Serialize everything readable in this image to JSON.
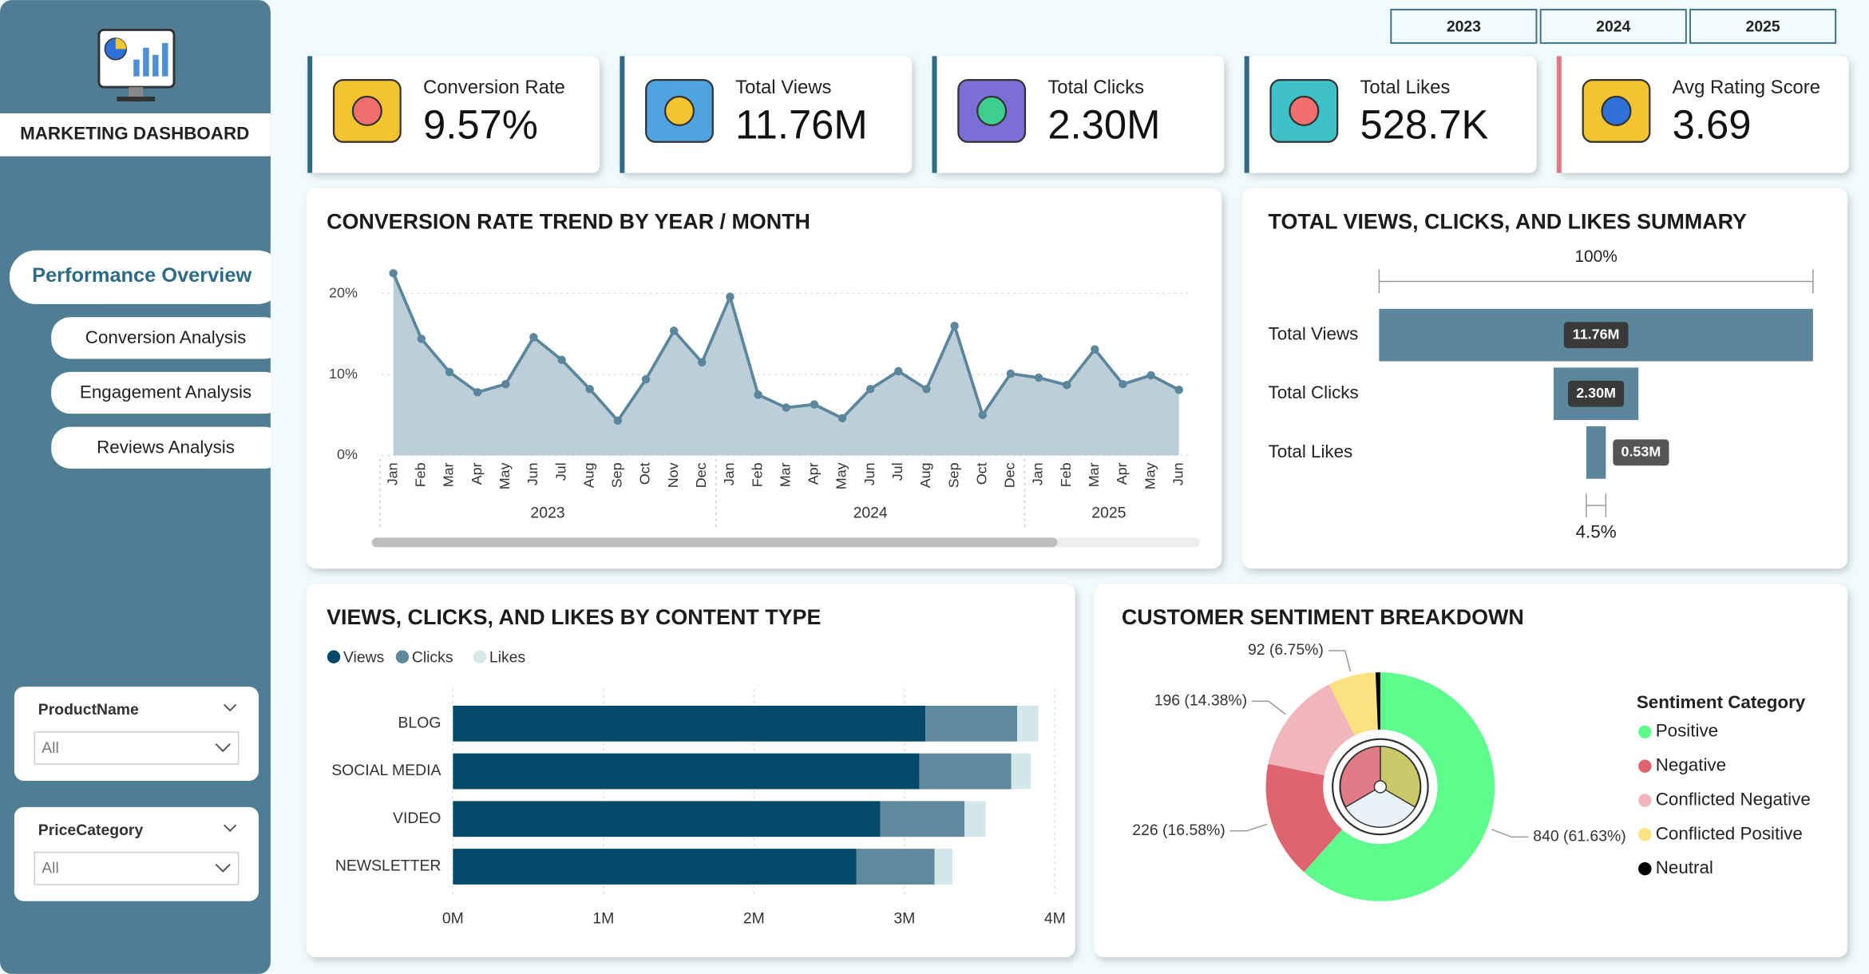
{
  "sidebar": {
    "title": "MARKETING DASHBOARD",
    "nav": [
      "Performance Overview",
      "Conversion Analysis",
      "Engagement Analysis",
      "Reviews Analysis"
    ],
    "filters": [
      {
        "label": "ProductName",
        "value": "All"
      },
      {
        "label": "PriceCategory",
        "value": "All"
      }
    ]
  },
  "years": [
    "2023",
    "2024",
    "2025"
  ],
  "kpis": [
    {
      "label": "Conversion Rate",
      "value": "9.57%"
    },
    {
      "label": "Total Views",
      "value": "11.76M"
    },
    {
      "label": "Total Clicks",
      "value": "2.30M"
    },
    {
      "label": "Total Likes",
      "value": "528.7K"
    },
    {
      "label": "Avg Rating Score",
      "value": "3.69"
    }
  ],
  "chart_data": [
    {
      "type": "area",
      "title": "CONVERSION RATE TREND BY YEAR / MONTH",
      "categories": [
        {
          "month": "Jan",
          "year": "2023"
        },
        {
          "month": "Feb",
          "year": "2023"
        },
        {
          "month": "Mar",
          "year": "2023"
        },
        {
          "month": "Apr",
          "year": "2023"
        },
        {
          "month": "May",
          "year": "2023"
        },
        {
          "month": "Jun",
          "year": "2023"
        },
        {
          "month": "Jul",
          "year": "2023"
        },
        {
          "month": "Aug",
          "year": "2023"
        },
        {
          "month": "Sep",
          "year": "2023"
        },
        {
          "month": "Oct",
          "year": "2023"
        },
        {
          "month": "Nov",
          "year": "2023"
        },
        {
          "month": "Dec",
          "year": "2023"
        },
        {
          "month": "Jan",
          "year": "2024"
        },
        {
          "month": "Feb",
          "year": "2024"
        },
        {
          "month": "Mar",
          "year": "2024"
        },
        {
          "month": "Apr",
          "year": "2024"
        },
        {
          "month": "May",
          "year": "2024"
        },
        {
          "month": "Jun",
          "year": "2024"
        },
        {
          "month": "Jul",
          "year": "2024"
        },
        {
          "month": "Aug",
          "year": "2024"
        },
        {
          "month": "Sep",
          "year": "2024"
        },
        {
          "month": "Oct",
          "year": "2024"
        },
        {
          "month": "Dec",
          "year": "2024"
        },
        {
          "month": "Jan",
          "year": "2025"
        },
        {
          "month": "Feb",
          "year": "2025"
        },
        {
          "month": "Mar",
          "year": "2025"
        },
        {
          "month": "Apr",
          "year": "2025"
        },
        {
          "month": "May",
          "year": "2025"
        },
        {
          "month": "Jun",
          "year": "2025"
        }
      ],
      "values": [
        22.5,
        14.4,
        10.3,
        7.8,
        8.8,
        14.6,
        11.8,
        8.2,
        4.3,
        9.4,
        15.4,
        11.5,
        19.6,
        7.5,
        5.9,
        6.3,
        4.6,
        8.2,
        10.4,
        8.2,
        16.0,
        5.0,
        10.1,
        9.6,
        8.7,
        13.1,
        8.8,
        9.9,
        8.1
      ],
      "color": "#5b869b",
      "fill": "#bccfd8",
      "ylim": [
        0,
        24
      ],
      "yticks": [
        {
          "value": 0,
          "label": "0%"
        },
        {
          "value": 10,
          "label": "10%"
        },
        {
          "value": 20,
          "label": "20%"
        }
      ],
      "grid": true
    },
    {
      "type": "funnel",
      "title": "TOTAL VIEWS, CLICKS, AND LIKES SUMMARY",
      "categories": [
        "Total Views",
        "Total Clicks",
        "Total Likes"
      ],
      "values": [
        11760000,
        2300000,
        530000
      ],
      "value_labels": [
        "11.76M",
        "2.30M",
        "0.53M"
      ],
      "color": "#5b869b",
      "top_label": "100%",
      "bottom_label": "4.5%"
    },
    {
      "type": "stacked_bar",
      "orientation": "horizontal",
      "title": "VIEWS, CLICKS, AND LIKES BY CONTENT TYPE",
      "categories": [
        "BLOG",
        "SOCIAL MEDIA",
        "VIDEO",
        "NEWSLETTER"
      ],
      "series": [
        {
          "name": "Views",
          "color": "#034a6a",
          "values": [
            3140000,
            3100000,
            2840000,
            2680000
          ]
        },
        {
          "name": "Clicks",
          "color": "#5f8a9e",
          "values": [
            610000,
            610000,
            560000,
            520000
          ]
        },
        {
          "name": "Likes",
          "color": "#d4e8ea",
          "values": [
            140000,
            130000,
            140000,
            120000
          ]
        }
      ],
      "xlim": [
        0,
        4000000
      ],
      "xticks": [
        {
          "value": 0,
          "label": "0M"
        },
        {
          "value": 1000000,
          "label": "1M"
        },
        {
          "value": 2000000,
          "label": "2M"
        },
        {
          "value": 3000000,
          "label": "3M"
        },
        {
          "value": 4000000,
          "label": "4M"
        }
      ],
      "grid": true,
      "legend": "top-left"
    },
    {
      "type": "donut",
      "title": "CUSTOMER SENTIMENT BREAKDOWN",
      "legend_title": "Sentiment Category",
      "categories": [
        "Positive",
        "Negative",
        "Conflicted Negative",
        "Conflicted Positive",
        "Neutral"
      ],
      "values": [
        840,
        226,
        196,
        92,
        9
      ],
      "value_labels": [
        "840 (61.63%)",
        "226 (16.58%)",
        "196 (14.38%)",
        "92 (6.75%)",
        null
      ],
      "colors": [
        "#5efc8d",
        "#e06370",
        "#f0b6bb",
        "#fbe17f",
        "#000000"
      ],
      "legend": "right"
    }
  ]
}
